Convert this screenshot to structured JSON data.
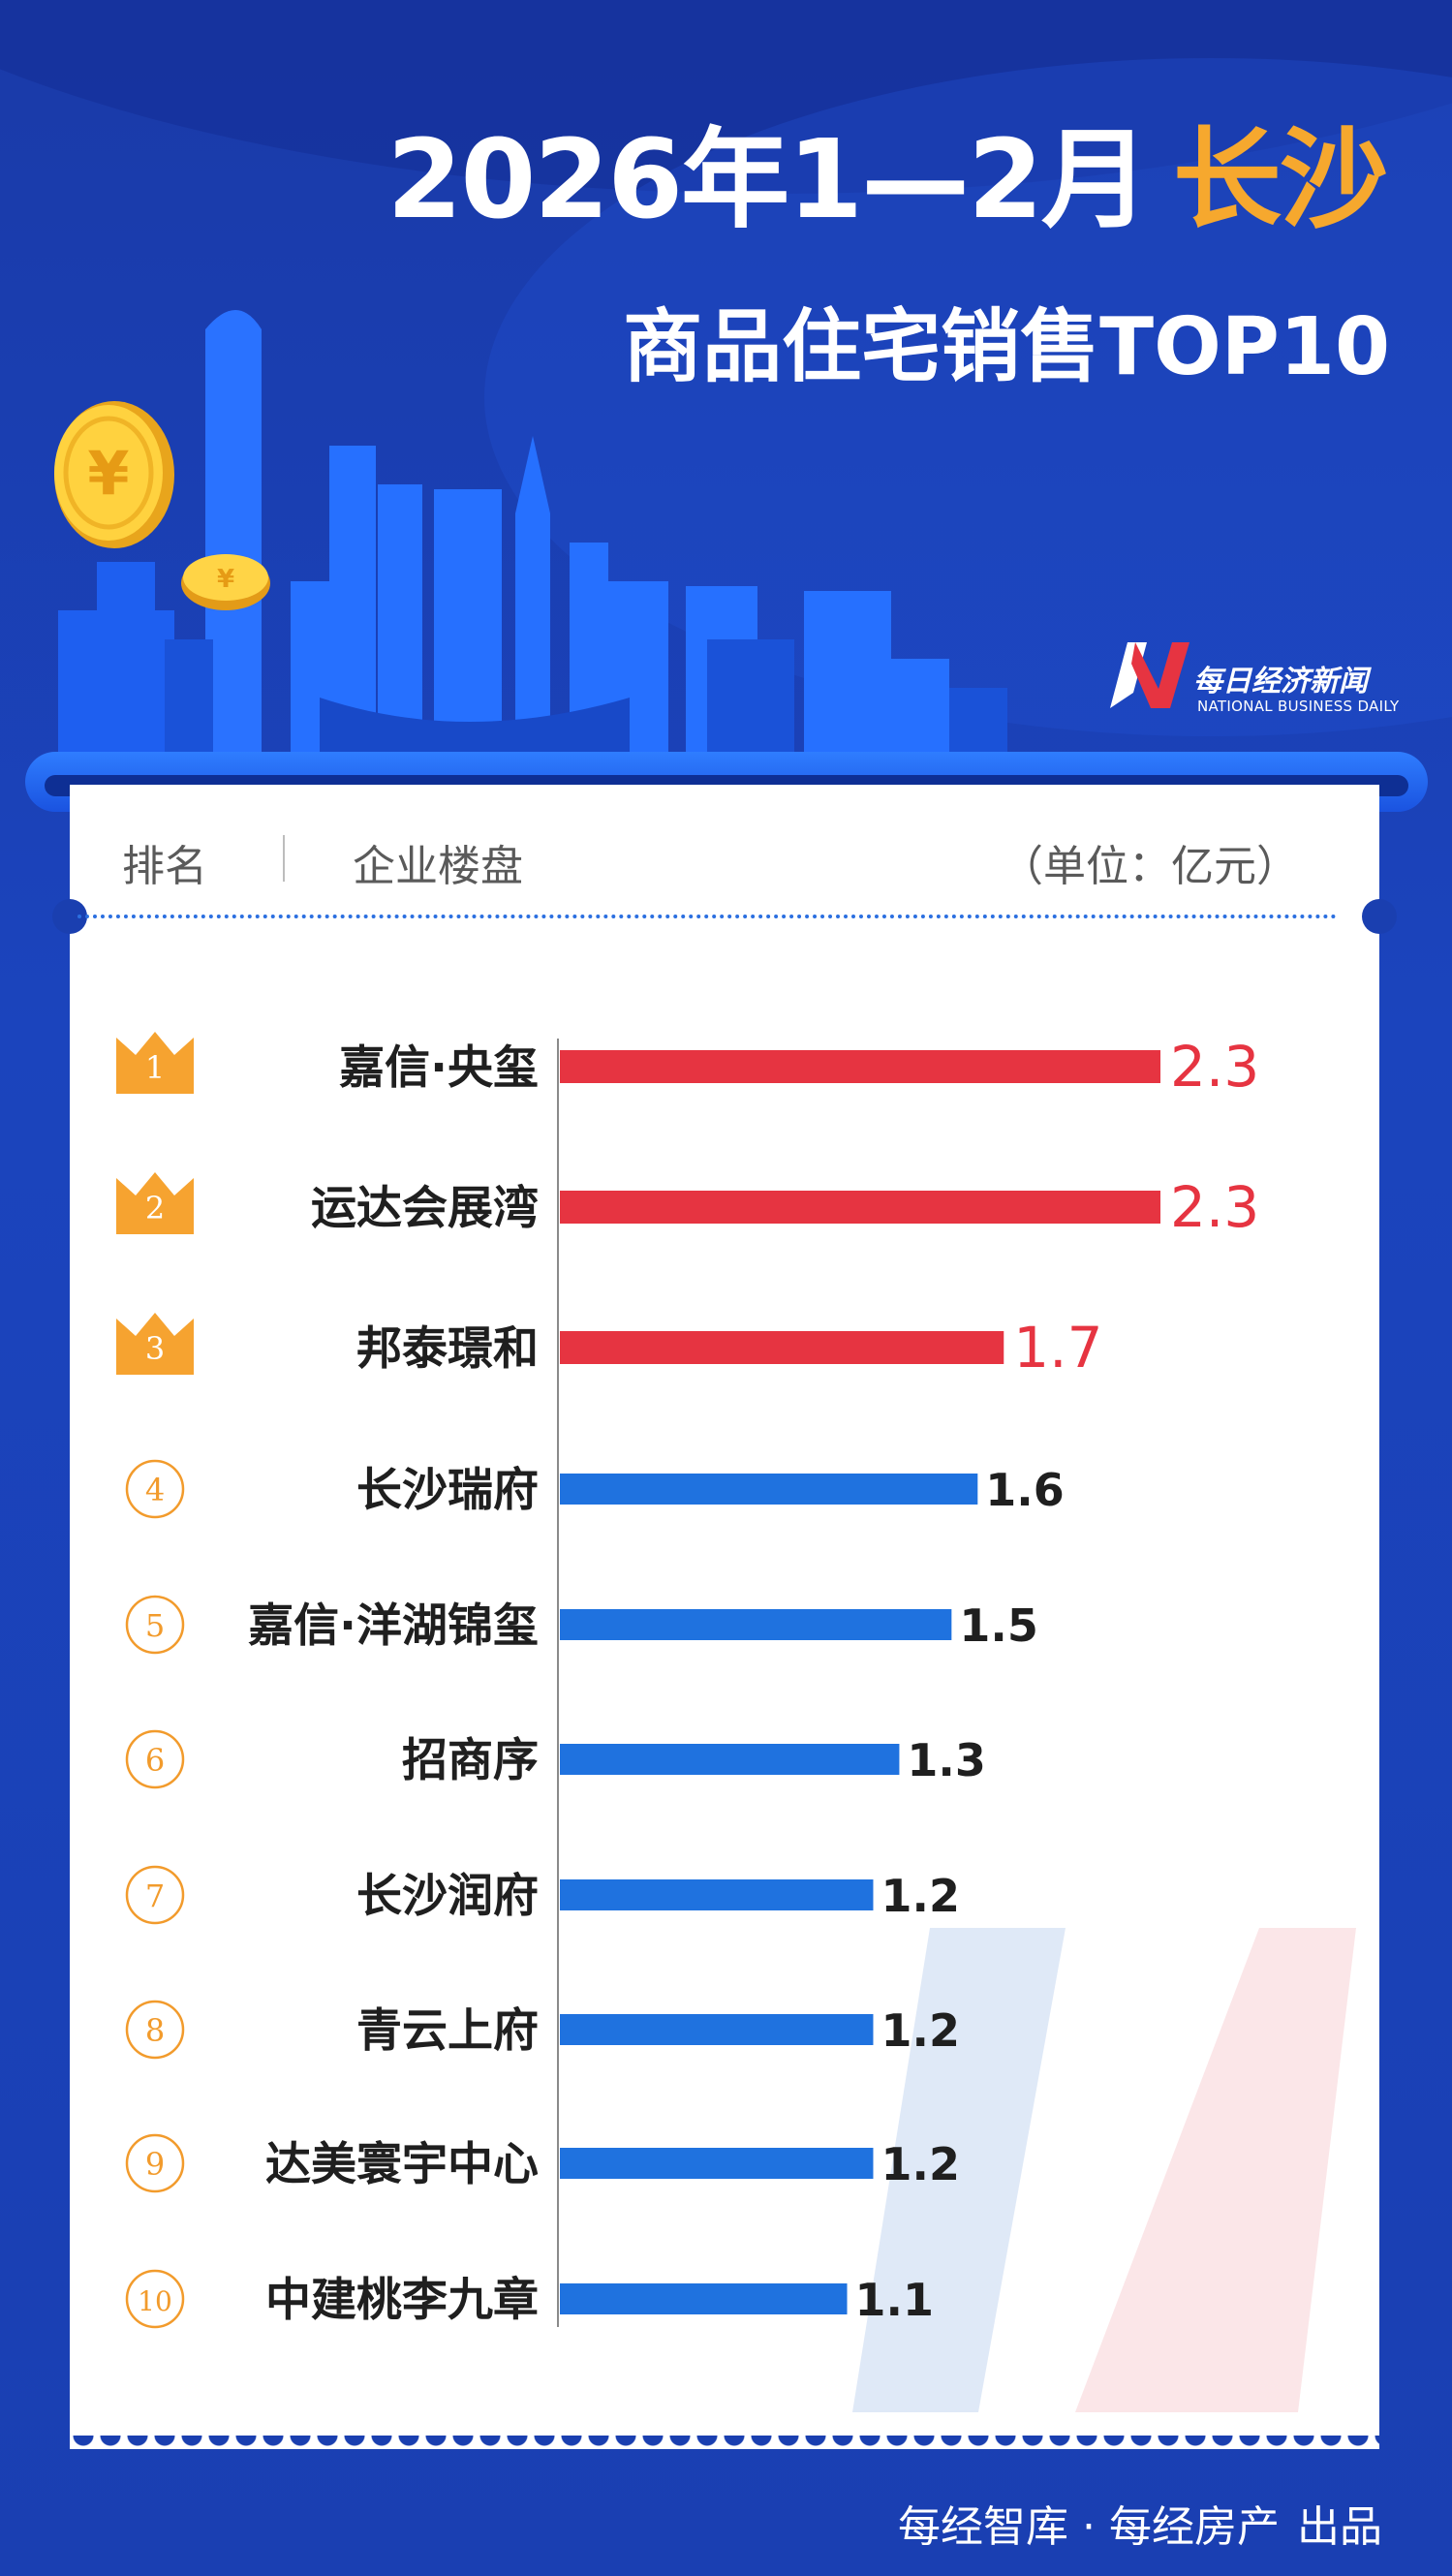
{
  "header": {
    "title_period": "2026年1—2月",
    "title_city": "长沙",
    "subtitle": "商品住宅销售TOP10"
  },
  "brand": {
    "name": "每日经济新闻",
    "english": "NATIONAL BUSINESS DAILY"
  },
  "table": {
    "rank_header": "排名",
    "project_header": "企业楼盘",
    "unit_label": "（单位：亿元）"
  },
  "chart_data": {
    "type": "bar",
    "orientation": "horizontal",
    "title": "2026年1—2月 长沙 商品住宅销售TOP10",
    "unit": "亿元",
    "ranks": [
      "1",
      "2",
      "3",
      "4",
      "5",
      "6",
      "7",
      "8",
      "9",
      "10"
    ],
    "categories": [
      "嘉信·央玺",
      "运达会展湾",
      "邦泰璟和",
      "长沙瑞府",
      "嘉信·洋湖锦玺",
      "招商序",
      "长沙润府",
      "青云上府",
      "达美寰宇中心",
      "中建桃李九章"
    ],
    "values": [
      2.3,
      2.3,
      1.7,
      1.6,
      1.5,
      1.3,
      1.2,
      1.2,
      1.2,
      1.1
    ],
    "value_labels": [
      "2.3",
      "2.3",
      "1.7",
      "1.6",
      "1.5",
      "1.3",
      "1.2",
      "1.2",
      "1.2",
      "1.1"
    ],
    "xlim": [
      0,
      2.3
    ],
    "grid": false,
    "legend": "none",
    "colors": {
      "top3": "#e63441",
      "rest": "#1f72df",
      "medal": "#f6a330",
      "rank_circle": "#f29b2c"
    }
  },
  "footer": {
    "source_a": "每经智库",
    "separator": "·",
    "source_b": "每经房产",
    "produced": "出品"
  }
}
